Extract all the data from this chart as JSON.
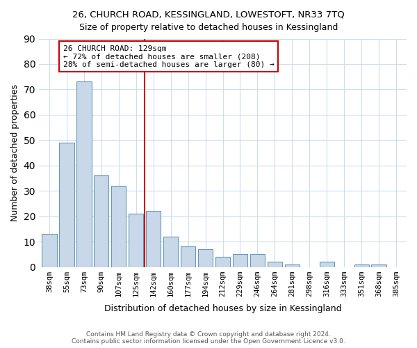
{
  "title1": "26, CHURCH ROAD, KESSINGLAND, LOWESTOFT, NR33 7TQ",
  "title2": "Size of property relative to detached houses in Kessingland",
  "xlabel": "Distribution of detached houses by size in Kessingland",
  "ylabel": "Number of detached properties",
  "bar_labels": [
    "38sqm",
    "55sqm",
    "73sqm",
    "90sqm",
    "107sqm",
    "125sqm",
    "142sqm",
    "160sqm",
    "177sqm",
    "194sqm",
    "212sqm",
    "229sqm",
    "246sqm",
    "264sqm",
    "281sqm",
    "298sqm",
    "316sqm",
    "333sqm",
    "351sqm",
    "368sqm",
    "385sqm"
  ],
  "bar_values": [
    13,
    49,
    73,
    36,
    32,
    21,
    22,
    12,
    8,
    7,
    4,
    5,
    5,
    2,
    1,
    0,
    2,
    0,
    1,
    1,
    0
  ],
  "bar_color": "#c8d8e8",
  "bar_edge_color": "#6699bb",
  "reference_line_color": "#cc0000",
  "annotation_title": "26 CHURCH ROAD: 129sqm",
  "annotation_line1": "← 72% of detached houses are smaller (208)",
  "annotation_line2": "28% of semi-detached houses are larger (80) →",
  "annotation_box_edge": "#cc0000",
  "ylim": [
    0,
    90
  ],
  "yticks": [
    0,
    10,
    20,
    30,
    40,
    50,
    60,
    70,
    80,
    90
  ],
  "footer1": "Contains HM Land Registry data © Crown copyright and database right 2024.",
  "footer2": "Contains public sector information licensed under the Open Government Licence v3.0."
}
